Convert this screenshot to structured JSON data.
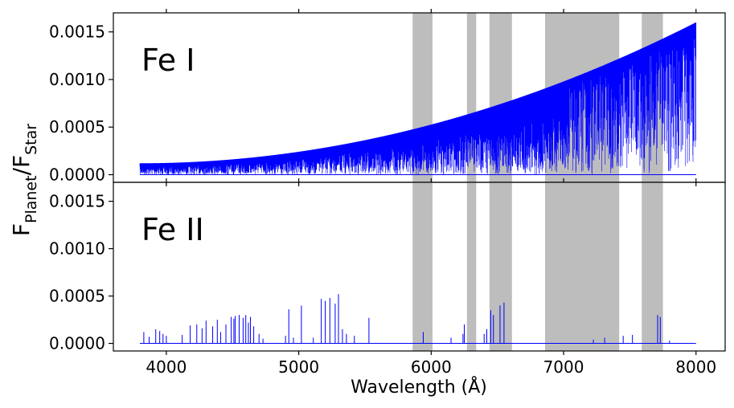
{
  "chart_data": {
    "type": "line",
    "xlabel": "Wavelength (Å)",
    "ylabel": {
      "base": "F",
      "num_sub": "Planet",
      "slash": "/",
      "den_base": "F",
      "den_sub": "Star"
    },
    "xlim": [
      3600,
      8220
    ],
    "ylim": [
      -8e-05,
      0.0017
    ],
    "x_ticks": [
      4000,
      5000,
      6000,
      7000,
      8000
    ],
    "x_tick_labels": [
      "4000",
      "5000",
      "6000",
      "7000",
      "8000"
    ],
    "y_ticks": [
      0.0,
      0.0005,
      0.001,
      0.0015
    ],
    "y_tick_labels": [
      "0.0000",
      "0.0005",
      "0.0010",
      "0.0015"
    ],
    "line_color": "#0000ff",
    "shade_color": "#bdbdbd",
    "shaded_regions": [
      [
        5860,
        6010
      ],
      [
        6270,
        6340
      ],
      [
        6440,
        6610
      ],
      [
        6860,
        7420
      ],
      [
        7590,
        7750
      ]
    ],
    "panels": [
      {
        "label": "Fe I",
        "continuum": {
          "x_start": 3800,
          "x_end": 8000,
          "y_start": 0.00012,
          "y_end": 0.0016,
          "shape": "quadratic"
        },
        "line_density": "dense across full range, thinning beyond 7000",
        "peak_value": 0.0016
      },
      {
        "label": "Fe II",
        "baseline": 0.0,
        "lines": [
          [
            3830,
            0.00012
          ],
          [
            3870,
            7e-05
          ],
          [
            3920,
            0.00015
          ],
          [
            3950,
            0.00013
          ],
          [
            3975,
            0.0001
          ],
          [
            4000,
            8e-05
          ],
          [
            4120,
            9e-05
          ],
          [
            4180,
            0.00019
          ],
          [
            4230,
            0.0002
          ],
          [
            4270,
            0.00016
          ],
          [
            4300,
            0.00024
          ],
          [
            4350,
            0.00018
          ],
          [
            4385,
            0.00025
          ],
          [
            4410,
            0.00012
          ],
          [
            4450,
            0.0002
          ],
          [
            4490,
            0.00028
          ],
          [
            4510,
            0.00026
          ],
          [
            4520,
            0.00029
          ],
          [
            4550,
            0.0003
          ],
          [
            4580,
            0.00027
          ],
          [
            4600,
            0.0003
          ],
          [
            4620,
            0.00022
          ],
          [
            4635,
            0.00028
          ],
          [
            4660,
            0.00018
          ],
          [
            4700,
            0.0001
          ],
          [
            4730,
            5e-05
          ],
          [
            4900,
            8e-05
          ],
          [
            4925,
            0.00036
          ],
          [
            4960,
            6e-05
          ],
          [
            5020,
            0.0004
          ],
          [
            5110,
            6e-05
          ],
          [
            5170,
            0.00047
          ],
          [
            5200,
            0.00045
          ],
          [
            5235,
            0.00048
          ],
          [
            5275,
            0.00042
          ],
          [
            5300,
            0.00052
          ],
          [
            5330,
            0.00015
          ],
          [
            5360,
            0.0001
          ],
          [
            5420,
            8e-05
          ],
          [
            5530,
            0.00027
          ],
          [
            5940,
            0.00012
          ],
          [
            6150,
            6e-05
          ],
          [
            6240,
            0.0001
          ],
          [
            6250,
            0.0002
          ],
          [
            6400,
            0.0001
          ],
          [
            6420,
            0.00015
          ],
          [
            6450,
            0.00035
          ],
          [
            6470,
            0.0003
          ],
          [
            6520,
            0.0004
          ],
          [
            6550,
            0.00043
          ],
          [
            7225,
            4e-05
          ],
          [
            7310,
            6e-05
          ],
          [
            7450,
            8e-05
          ],
          [
            7520,
            9e-05
          ],
          [
            7710,
            0.0003
          ],
          [
            7730,
            0.00028
          ],
          [
            7800,
            3e-05
          ]
        ]
      }
    ]
  }
}
